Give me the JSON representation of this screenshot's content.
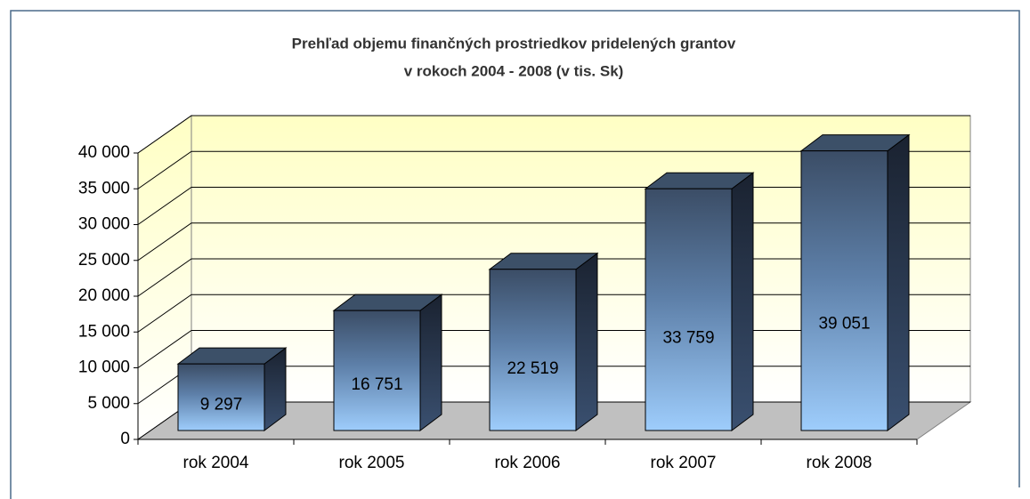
{
  "chart_data": {
    "type": "bar3d",
    "title": "Prehľad objemu finančných prostriedkov pridelených grantov",
    "subtitle": "v rokoch 2004 - 2008  (v tis. Sk)",
    "categories": [
      "rok 2004",
      "rok 2005",
      "rok 2006",
      "rok 2007",
      "rok 2008"
    ],
    "values": [
      9297,
      16751,
      22519,
      33759,
      39051
    ],
    "value_labels": [
      "9 297",
      "16 751",
      "22 519",
      "33 759",
      "39 051"
    ],
    "color": "#5d7fa8",
    "ylim": [
      0,
      40000
    ],
    "yticks": [
      0,
      {
        "value": 5000,
        "label": "5 000"
      },
      {
        "value": 10000,
        "label": "10 000"
      },
      {
        "value": 15000,
        "label": "15 000"
      },
      {
        "value": 20000,
        "label": "20 000"
      },
      {
        "value": 25000,
        "label": "25 000"
      },
      {
        "value": 30000,
        "label": "30 000"
      },
      {
        "value": 35000,
        "label": "35 000"
      },
      {
        "value": 40000,
        "label": "40 000"
      }
    ],
    "grid": true
  }
}
